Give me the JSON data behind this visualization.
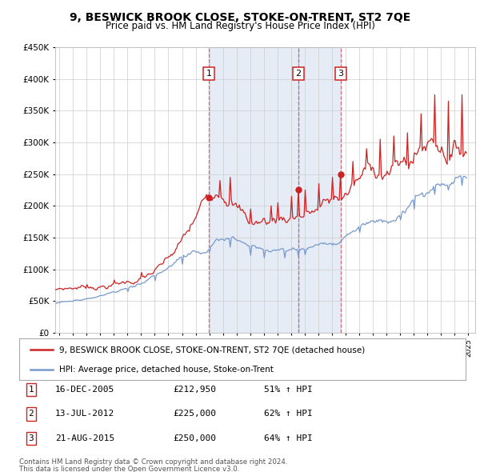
{
  "title": "9, BESWICK BROOK CLOSE, STOKE-ON-TRENT, ST2 7QE",
  "subtitle": "Price paid vs. HM Land Registry's House Price Index (HPI)",
  "ylim": [
    0,
    450000
  ],
  "yticks": [
    0,
    50000,
    100000,
    150000,
    200000,
    250000,
    300000,
    350000,
    400000,
    450000
  ],
  "xlim_start": 1994.7,
  "xlim_end": 2025.5,
  "sale_points": [
    {
      "num": 1,
      "date_label": "16-DEC-2005",
      "date_x": 2005.96,
      "price": 212950,
      "pct": "51%"
    },
    {
      "num": 2,
      "date_label": "13-JUL-2012",
      "date_x": 2012.54,
      "price": 225000,
      "pct": "62%"
    },
    {
      "num": 3,
      "date_label": "21-AUG-2015",
      "date_x": 2015.64,
      "price": 250000,
      "pct": "64%"
    }
  ],
  "legend_red_label": "9, BESWICK BROOK CLOSE, STOKE-ON-TRENT, ST2 7QE (detached house)",
  "legend_blue_label": "HPI: Average price, detached house, Stoke-on-Trent",
  "footer1": "Contains HM Land Registry data © Crown copyright and database right 2024.",
  "footer2": "This data is licensed under the Open Government Licence v3.0.",
  "red_color": "#cc2222",
  "blue_color": "#7799cc",
  "shade_color": "#ddeeff",
  "grid_color": "#cccccc",
  "bg_color": "#ffffff"
}
